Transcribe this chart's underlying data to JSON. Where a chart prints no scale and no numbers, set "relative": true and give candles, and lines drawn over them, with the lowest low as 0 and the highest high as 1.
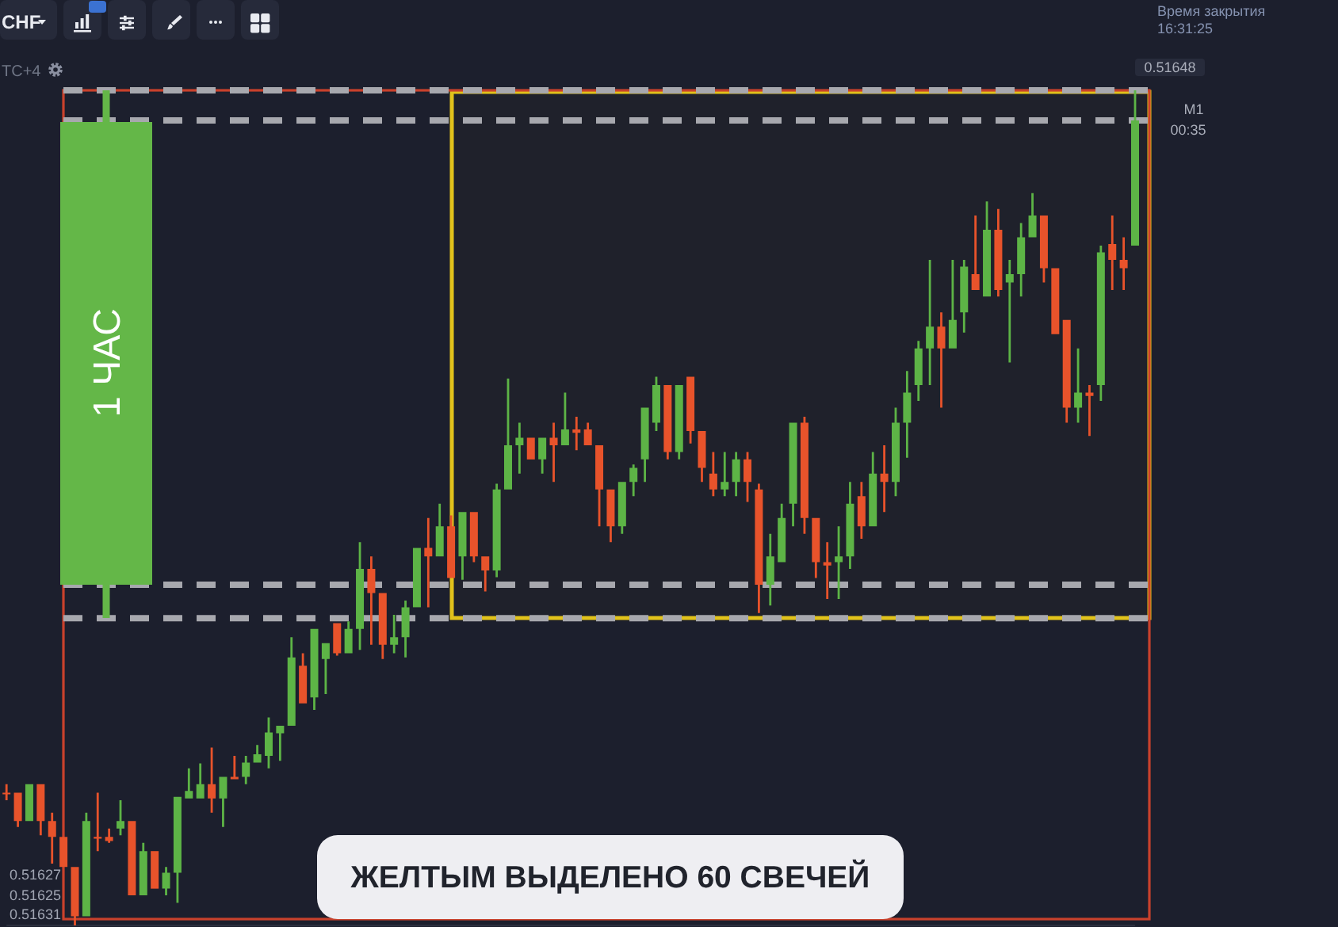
{
  "chart_data": {
    "type": "candlestick",
    "relative": true,
    "categories": [
      null,
      null,
      null,
      null,
      null,
      null,
      null,
      null,
      null,
      null,
      null,
      null,
      null,
      null,
      null,
      null,
      null,
      null,
      null,
      null,
      null,
      null,
      null,
      null,
      null,
      null,
      null,
      null,
      null,
      null,
      null,
      null,
      null,
      null,
      null,
      null,
      null,
      null,
      null,
      null,
      null,
      null,
      null,
      null,
      null,
      null,
      null,
      null,
      null,
      null,
      null,
      null,
      null,
      null,
      null,
      null,
      null,
      null,
      null,
      null,
      null,
      null,
      null,
      null,
      null,
      null,
      null,
      null,
      null,
      null,
      null,
      null,
      null,
      null,
      null,
      null,
      null,
      null,
      null,
      null,
      null,
      null,
      null,
      null,
      null,
      null,
      null,
      null,
      null,
      null,
      null,
      null,
      null,
      null,
      null,
      null,
      null,
      null,
      null,
      null
    ],
    "ohlc": [
      [
        0.159,
        0.169,
        0.15,
        0.157
      ],
      [
        0.159,
        0.159,
        0.118,
        0.125
      ],
      [
        0.125,
        0.169,
        0.125,
        0.169
      ],
      [
        0.169,
        0.169,
        0.108,
        0.125
      ],
      [
        0.125,
        0.135,
        0.074,
        0.106
      ],
      [
        0.106,
        0.106,
        0.07,
        0.07
      ],
      [
        0.07,
        0.07,
        0,
        0.011
      ],
      [
        0.011,
        0.135,
        0.011,
        0.125
      ],
      [
        0.106,
        0.159,
        0.089,
        0.104
      ],
      [
        0.106,
        0.116,
        0.099,
        0.101
      ],
      [
        0.116,
        0.15,
        0.108,
        0.125
      ],
      [
        0.125,
        0.125,
        0.036,
        0.036
      ],
      [
        0.036,
        0.099,
        0.036,
        0.089
      ],
      [
        0.089,
        0.089,
        0.044,
        0.044
      ],
      [
        0.044,
        0.07,
        0.036,
        0.063
      ],
      [
        0.063,
        0.154,
        0.027,
        0.154
      ],
      [
        0.152,
        0.188,
        0.152,
        0.161
      ],
      [
        0.152,
        0.194,
        0.152,
        0.169
      ],
      [
        0.169,
        0.213,
        0.135,
        0.152
      ],
      [
        0.152,
        0.178,
        0.118,
        0.178
      ],
      [
        0.178,
        0.203,
        0.175,
        0.175
      ],
      [
        0.178,
        0.203,
        0.169,
        0.195
      ],
      [
        0.195,
        0.216,
        0.195,
        0.205
      ],
      [
        0.203,
        0.249,
        0.188,
        0.231
      ],
      [
        0.23,
        0.239,
        0.197,
        0.239
      ],
      [
        0.239,
        0.345,
        0.239,
        0.321
      ],
      [
        0.311,
        0.326,
        0.266,
        0.266
      ],
      [
        0.273,
        0.355,
        0.258,
        0.355
      ],
      [
        0.319,
        0.338,
        0.277,
        0.338
      ],
      [
        0.362,
        0.362,
        0.323,
        0.326
      ],
      [
        0.326,
        0.364,
        0.326,
        0.355
      ],
      [
        0.355,
        0.459,
        0.33,
        0.427
      ],
      [
        0.427,
        0.442,
        0.336,
        0.398
      ],
      [
        0.398,
        0.398,
        0.319,
        0.336
      ],
      [
        0.336,
        0.372,
        0.326,
        0.345
      ],
      [
        0.345,
        0.389,
        0.321,
        0.381
      ],
      [
        0.381,
        0.452,
        0.381,
        0.452
      ],
      [
        0.452,
        0.488,
        0.381,
        0.442
      ],
      [
        0.442,
        0.505,
        0.442,
        0.478
      ],
      [
        0.478,
        0.491,
        0.416,
        0.416
      ],
      [
        0.442,
        0.495,
        0.414,
        0.495
      ],
      [
        0.495,
        0.495,
        0.435,
        0.442
      ],
      [
        0.442,
        0.442,
        0.4,
        0.425
      ],
      [
        0.425,
        0.529,
        0.417,
        0.522
      ],
      [
        0.522,
        0.655,
        0.522,
        0.575
      ],
      [
        0.575,
        0.602,
        0.541,
        0.584
      ],
      [
        0.584,
        0.584,
        0.558,
        0.558
      ],
      [
        0.558,
        0.584,
        0.541,
        0.584
      ],
      [
        0.584,
        0.602,
        0.531,
        0.575
      ],
      [
        0.575,
        0.638,
        0.575,
        0.594
      ],
      [
        0.594,
        0.609,
        0.569,
        0.59
      ],
      [
        0.594,
        0.602,
        0.575,
        0.575
      ],
      [
        0.575,
        0.575,
        0.478,
        0.522
      ],
      [
        0.522,
        0.522,
        0.459,
        0.478
      ],
      [
        0.478,
        0.531,
        0.469,
        0.531
      ],
      [
        0.531,
        0.552,
        0.514,
        0.548
      ],
      [
        0.558,
        0.62,
        0.531,
        0.62
      ],
      [
        0.602,
        0.657,
        0.592,
        0.647
      ],
      [
        0.647,
        0.647,
        0.558,
        0.567
      ],
      [
        0.567,
        0.647,
        0.558,
        0.647
      ],
      [
        0.657,
        0.657,
        0.577,
        0.592
      ],
      [
        0.592,
        0.592,
        0.531,
        0.548
      ],
      [
        0.541,
        0.567,
        0.514,
        0.522
      ],
      [
        0.522,
        0.567,
        0.514,
        0.531
      ],
      [
        0.531,
        0.567,
        0.514,
        0.558
      ],
      [
        0.558,
        0.567,
        0.507,
        0.531
      ],
      [
        0.522,
        0.529,
        0.374,
        0.408
      ],
      [
        0.408,
        0.469,
        0.383,
        0.442
      ],
      [
        0.435,
        0.505,
        0.435,
        0.488
      ],
      [
        0.505,
        0.602,
        0.478,
        0.602
      ],
      [
        0.602,
        0.609,
        0.469,
        0.488
      ],
      [
        0.488,
        0.488,
        0.416,
        0.435
      ],
      [
        0.435,
        0.459,
        0.391,
        0.431
      ],
      [
        0.435,
        0.478,
        0.391,
        0.442
      ],
      [
        0.442,
        0.531,
        0.427,
        0.505
      ],
      [
        0.514,
        0.531,
        0.463,
        0.478
      ],
      [
        0.478,
        0.567,
        0.478,
        0.541
      ],
      [
        0.541,
        0.575,
        0.495,
        0.531
      ],
      [
        0.531,
        0.62,
        0.514,
        0.602
      ],
      [
        0.602,
        0.664,
        0.56,
        0.638
      ],
      [
        0.647,
        0.7,
        0.628,
        0.691
      ],
      [
        0.691,
        0.797,
        0.647,
        0.717
      ],
      [
        0.717,
        0.734,
        0.62,
        0.691
      ],
      [
        0.691,
        0.797,
        0.691,
        0.725
      ],
      [
        0.734,
        0.797,
        0.71,
        0.789
      ],
      [
        0.78,
        0.85,
        0.761,
        0.761
      ],
      [
        0.753,
        0.867,
        0.753,
        0.833
      ],
      [
        0.833,
        0.858,
        0.753,
        0.761
      ],
      [
        0.77,
        0.797,
        0.674,
        0.78
      ],
      [
        0.78,
        0.841,
        0.753,
        0.824
      ],
      [
        0.824,
        0.877,
        0.824,
        0.85
      ],
      [
        0.85,
        0.85,
        0.77,
        0.787
      ],
      [
        0.787,
        0.787,
        0.708,
        0.708
      ],
      [
        0.725,
        0.725,
        0.602,
        0.62
      ],
      [
        0.62,
        0.691,
        0.602,
        0.638
      ],
      [
        0.638,
        0.647,
        0.586,
        0.634
      ],
      [
        0.647,
        0.814,
        0.628,
        0.806
      ],
      [
        0.816,
        0.85,
        0.761,
        0.797
      ],
      [
        0.797,
        0.824,
        0.761,
        0.787
      ],
      [
        0.814,
        1,
        0.814,
        0.964
      ]
    ],
    "colors": [
      "#e8532b",
      "#e8532b",
      "#5db446",
      "#e8532b",
      "#e8532b",
      "#e8532b",
      "#e8532b",
      "#5db446",
      "#e8532b",
      "#e8532b",
      "#5db446",
      "#e8532b",
      "#5db446",
      "#e8532b",
      "#5db446",
      "#5db446",
      "#5db446",
      "#5db446",
      "#e8532b",
      "#5db446",
      "#e8532b",
      "#5db446",
      "#5db446",
      "#5db446",
      "#5db446",
      "#5db446",
      "#e8532b",
      "#5db446",
      "#5db446",
      "#e8532b",
      "#5db446",
      "#5db446",
      "#e8532b",
      "#e8532b",
      "#5db446",
      "#5db446",
      "#5db446",
      "#e8532b",
      "#5db446",
      "#e8532b",
      "#5db446",
      "#e8532b",
      "#e8532b",
      "#5db446",
      "#5db446",
      "#5db446",
      "#e8532b",
      "#5db446",
      "#e8532b",
      "#5db446",
      "#e8532b",
      "#e8532b",
      "#e8532b",
      "#e8532b",
      "#5db446",
      "#5db446",
      "#5db446",
      "#5db446",
      "#e8532b",
      "#5db446",
      "#e8532b",
      "#e8532b",
      "#e8532b",
      "#5db446",
      "#5db446",
      "#e8532b",
      "#e8532b",
      "#5db446",
      "#5db446",
      "#5db446",
      "#e8532b",
      "#e8532b",
      "#e8532b",
      "#5db446",
      "#5db446",
      "#e8532b",
      "#5db446",
      "#e8532b",
      "#5db446",
      "#5db446",
      "#5db446",
      "#5db446",
      "#e8532b",
      "#5db446",
      "#5db446",
      "#e8532b",
      "#5db446",
      "#e8532b",
      "#5db446",
      "#5db446",
      "#5db446",
      "#e8532b",
      "#e8532b",
      "#e8532b",
      "#5db446",
      "#e8532b",
      "#5db446",
      "#e8532b",
      "#e8532b",
      "#5db446"
    ],
    "ref_lines": [
      {
        "axis": "y",
        "value": 1,
        "color": "#a7a8ae",
        "line_style": "dashed"
      },
      {
        "axis": "y",
        "value": 0.964,
        "color": "#a7a8ae",
        "line_style": "dashed"
      },
      {
        "axis": "y",
        "value": 0.408,
        "color": "#a7a8ae",
        "line_style": "dashed"
      },
      {
        "axis": "y",
        "value": 0.368,
        "color": "#a7a8ae",
        "line_style": "dashed"
      }
    ],
    "annotations": [
      "CHF",
      "TC+4",
      "Время закрытия",
      "16:31:25",
      "0.51648",
      "M1",
      "00:35",
      "1 ЧАС",
      "ЖЕЛТЫМ ВЫДЕЛЕНО 60 СВЕЧЕЙ",
      "0.51627",
      "0.51625",
      "0.51631"
    ]
  }
}
